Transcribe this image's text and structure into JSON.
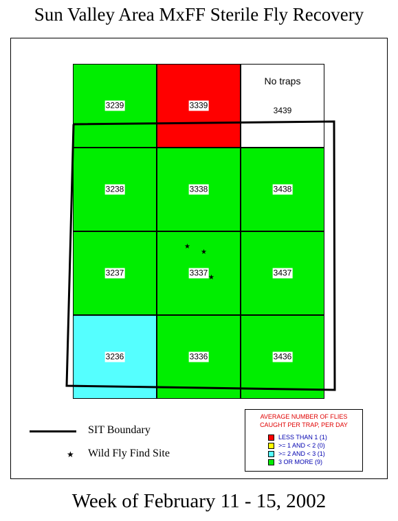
{
  "title": "Sun Valley Area MxFF Sterile Fly Recovery",
  "footer": "Week of February 11 - 15, 2002",
  "colors": {
    "red": "#ff0000",
    "yellow": "#ffff00",
    "cyan": "#55ffff",
    "green": "#00ee00",
    "white": "#ffffff"
  },
  "grid": {
    "cells": [
      {
        "id": "3239",
        "color": "green"
      },
      {
        "id": "3339",
        "color": "red"
      },
      {
        "id": "3439",
        "color": "white",
        "note": "No traps"
      },
      {
        "id": "3238",
        "color": "green"
      },
      {
        "id": "3338",
        "color": "green"
      },
      {
        "id": "3438",
        "color": "green"
      },
      {
        "id": "3237",
        "color": "green"
      },
      {
        "id": "3337",
        "color": "green"
      },
      {
        "id": "3437",
        "color": "green"
      },
      {
        "id": "3236",
        "color": "cyan"
      },
      {
        "id": "3336",
        "color": "green"
      },
      {
        "id": "3436",
        "color": "green"
      }
    ]
  },
  "legend": {
    "boundary_label": "SIT Boundary",
    "wild_fly_label": "Wild Fly Find Site",
    "star_symbol": "★"
  },
  "key": {
    "title_line1": "AVERAGE NUMBER OF FLIES",
    "title_line2": "CAUGHT PER TRAP, PER DAY",
    "items": [
      {
        "label": "LESS THAN 1  (1)",
        "color": "red"
      },
      {
        "label": ">= 1 AND < 2   (0)",
        "color": "yellow"
      },
      {
        "label": ">= 2 AND < 3   (1)",
        "color": "cyan"
      },
      {
        "label": "3 OR MORE      (9)",
        "color": "green"
      }
    ]
  }
}
